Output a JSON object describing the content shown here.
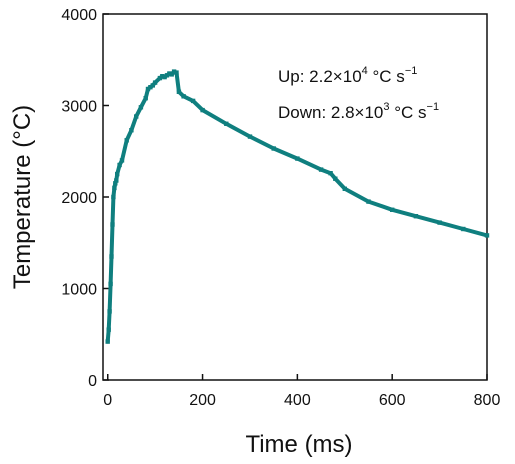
{
  "chart_data": {
    "type": "line",
    "xlabel": "Time (ms)",
    "ylabel": "Temperature (°C)",
    "xlim": [
      -10,
      800
    ],
    "ylim": [
      0,
      4000
    ],
    "x_ticks": [
      0,
      200,
      400,
      600,
      800
    ],
    "y_ticks": [
      0,
      1000,
      2000,
      3000,
      4000
    ],
    "x_tick_labels": [
      "0",
      "200",
      "400",
      "600",
      "800"
    ],
    "y_tick_labels": [
      "0",
      "1000",
      "2000",
      "3000",
      "4000"
    ],
    "grid": false,
    "line_color": "#0f7f7f",
    "annotations": [
      {
        "prefix": "Up: 2.2×10",
        "sup": "4",
        "unit": " °C s",
        "unit_sup": "−1"
      },
      {
        "prefix": "Down: 2.8×10",
        "sup": "3",
        "unit": " °C s",
        "unit_sup": "−1"
      }
    ],
    "series": [
      {
        "x": [
          0,
          2,
          4,
          6,
          8,
          10,
          12,
          14,
          16,
          18,
          20,
          25,
          30,
          40,
          50,
          60,
          70,
          80,
          85,
          90,
          95,
          100,
          110,
          115,
          120,
          125,
          130,
          135,
          140,
          145,
          150,
          160,
          180,
          200,
          250,
          300,
          350,
          400,
          450,
          470,
          480,
          500,
          550,
          600,
          650,
          700,
          750,
          800
        ],
        "y": [
          420,
          550,
          750,
          1050,
          1350,
          1700,
          2000,
          2100,
          2150,
          2180,
          2250,
          2350,
          2400,
          2620,
          2730,
          2880,
          2980,
          3080,
          3180,
          3200,
          3220,
          3250,
          3300,
          3320,
          3310,
          3330,
          3350,
          3340,
          3370,
          3360,
          3150,
          3100,
          3050,
          2950,
          2800,
          2660,
          2530,
          2420,
          2300,
          2260,
          2200,
          2090,
          1950,
          1860,
          1790,
          1720,
          1650,
          1580
        ]
      }
    ]
  }
}
